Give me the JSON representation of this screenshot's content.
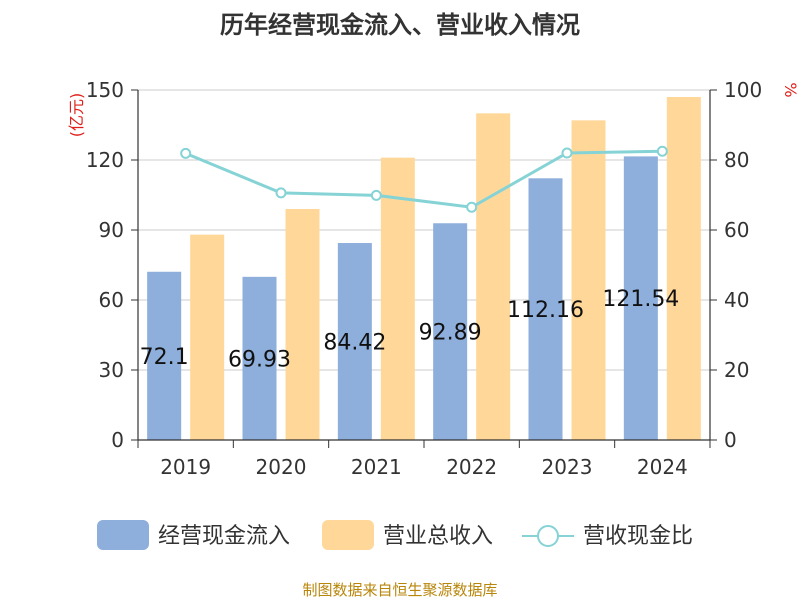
{
  "chart_data": {
    "type": "bar",
    "title": "历年经营现金流入、营业收入情况",
    "categories": [
      "2019",
      "2020",
      "2021",
      "2022",
      "2023",
      "2024"
    ],
    "series": [
      {
        "name": "经营现金流入",
        "kind": "bar",
        "axis": "left",
        "color": "#8eaedb",
        "values": [
          72.1,
          69.93,
          84.42,
          92.89,
          112.16,
          121.54
        ],
        "labels": [
          "72.1",
          "69.93",
          "84.42",
          "92.89",
          "112.16",
          "121.54"
        ]
      },
      {
        "name": "营业总收入",
        "kind": "bar",
        "axis": "left",
        "color": "#ffd899",
        "values": [
          88,
          99,
          121,
          140,
          137,
          147
        ]
      },
      {
        "name": "营收现金比",
        "kind": "line",
        "axis": "right",
        "color": "#86d3d6",
        "values": [
          81.9,
          70.6,
          69.9,
          66.5,
          82.0,
          82.5
        ]
      }
    ],
    "y_left": {
      "unit": "(亿元)",
      "min": 0,
      "max": 150,
      "ticks": [
        "0",
        "30",
        "60",
        "90",
        "120",
        "150"
      ]
    },
    "y_right": {
      "unit": "%",
      "min": 0,
      "max": 100,
      "ticks": [
        "0",
        "20",
        "40",
        "60",
        "80",
        "100"
      ]
    },
    "grid": true,
    "legend": "bottom"
  },
  "source": "制图数据来自恒生聚源数据库"
}
